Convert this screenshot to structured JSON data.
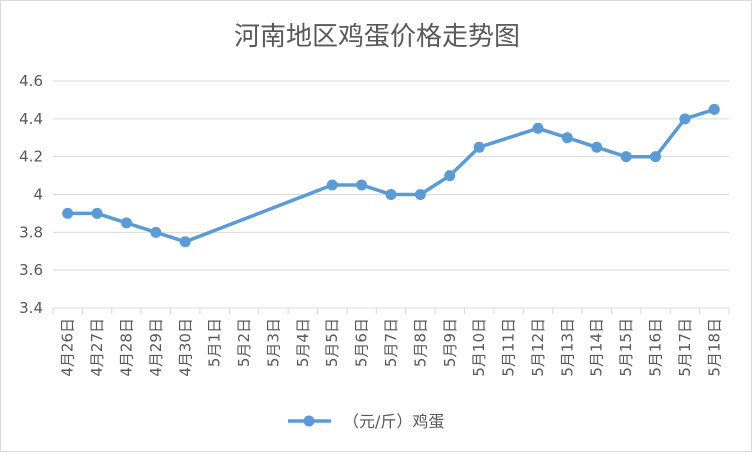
{
  "chart_data": {
    "type": "line",
    "title": "河南地区鸡蛋价格走势图",
    "xlabel": "",
    "ylabel": "",
    "ylim": [
      3.4,
      4.6
    ],
    "yticks": [
      "3.4",
      "3.6",
      "3.8",
      "4",
      "4.2",
      "4.4",
      "4.6"
    ],
    "grid": true,
    "legend_position": "bottom",
    "categories": [
      "4月26日",
      "4月27日",
      "4月28日",
      "4月29日",
      "4月30日",
      "5月1日",
      "5月2日",
      "5月3日",
      "5月4日",
      "5月5日",
      "5月6日",
      "5月7日",
      "5月8日",
      "5月9日",
      "5月10日",
      "5月11日",
      "5月12日",
      "5月13日",
      "5月14日",
      "5月15日",
      "5月16日",
      "5月17日",
      "5月18日"
    ],
    "series": [
      {
        "name": "（元/斤）鸡蛋",
        "color": "#5b9bd5",
        "values": [
          3.9,
          3.9,
          3.85,
          3.8,
          3.75,
          null,
          null,
          null,
          null,
          4.05,
          4.05,
          4.0,
          4.0,
          4.1,
          4.25,
          null,
          4.35,
          4.3,
          4.25,
          4.2,
          4.2,
          4.4,
          4.45
        ]
      }
    ]
  }
}
